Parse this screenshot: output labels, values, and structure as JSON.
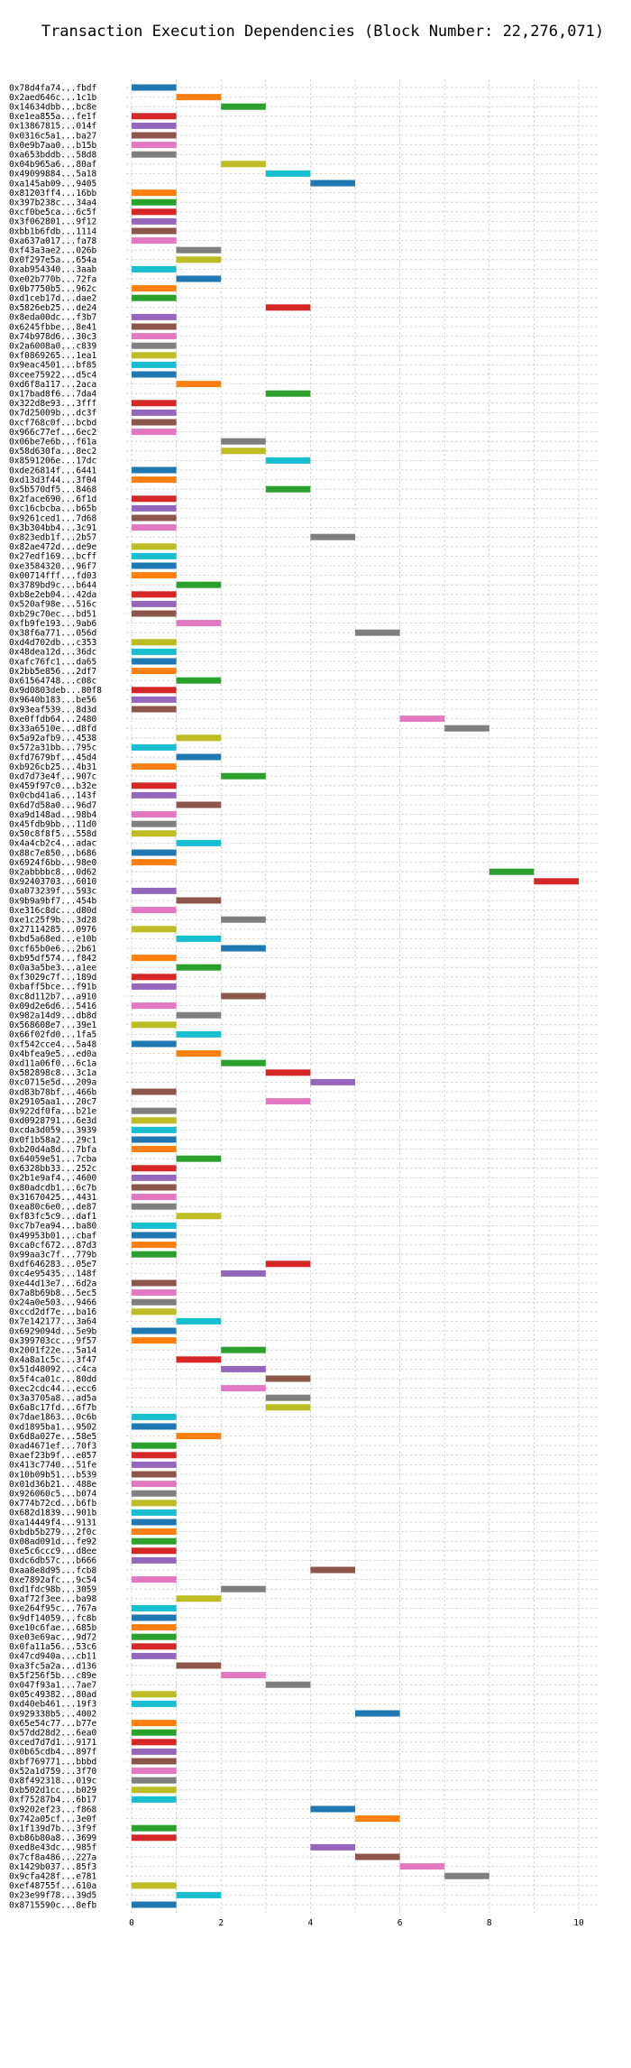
{
  "chart_data": {
    "type": "bar",
    "orientation": "horizontal-gantt",
    "title": "Transaction Execution Dependencies (Block Number: 22,276,071)",
    "xlabel": "",
    "ylabel": "",
    "xlim": [
      -0.3,
      10.5
    ],
    "xticks": [
      0,
      2,
      4,
      6,
      8,
      10
    ],
    "grid": true,
    "legend": "none",
    "colors": {
      "blue": "#1f77b4",
      "orange": "#ff7f0e",
      "green": "#2ca02c",
      "red": "#d62728",
      "purple": "#9467bd",
      "brown": "#8c564b",
      "pink": "#e377c2",
      "gray": "#7f7f7f",
      "olive": "#bcbd22",
      "cyan": "#17becf"
    },
    "categories": [
      "0x78d4fa74...fbdf",
      "0x2aed646c...1c1b",
      "0x14634dbb...bc8e",
      "0xe1ea855a...fe1f",
      "0x13867815...014f",
      "0x0316c5a1...ba27",
      "0x0e9b7aa0...b15b",
      "0xa653bddb...58d8",
      "0x04b965a6...80af",
      "0x49099884...5a18",
      "0xa145ab09...9405",
      "0x81203ff4...16bb",
      "0x397b238c...34a4",
      "0xcf0be5ca...6c5f",
      "0x3f062801...9f12",
      "0xbb1b6fdb...1114",
      "0xa637a017...fa78",
      "0xf43a3ae2...026b",
      "0x0f297e5a...654a",
      "0xab954340...3aab",
      "0xe02b770b...72fa",
      "0x0b7750b5...962c",
      "0xd1ceb17d...dae2",
      "0x5826eb25...de24",
      "0x8eda00dc...f3b7",
      "0x6245fbbe...8e41",
      "0x74b978d6...30c3",
      "0x2a6008a0...c839",
      "0xf0869265...1ea1",
      "0x9eac4501...bf85",
      "0xcee75922...d5c4",
      "0xd6f8a117...2aca",
      "0x17bad8f6...7da4",
      "0x322d8e93...3fff",
      "0x7d25009b...dc3f",
      "0xcf768c0f...bcbd",
      "0x966c77ef...6ec2",
      "0x06be7e6b...f61a",
      "0x58d630fa...8ec2",
      "0x8591206e...17dc",
      "0xde26814f...6441",
      "0xd13d3f44...3f04",
      "0x5b570df5...8468",
      "0x2face690...6f1d",
      "0xc16cbcba...b65b",
      "0x9261ced1...7d68",
      "0x3b304bb4...3c91",
      "0x823edb1f...2b57",
      "0x82ae472d...de9e",
      "0x27edf169...bcff",
      "0xe3584320...96f7",
      "0x00714fff...fd03",
      "0x3789bd9c...b644",
      "0xb8e2eb04...42da",
      "0x520af98e...516c",
      "0xb29c70ec...bd51",
      "0xfb9fe193...9ab6",
      "0x38f6a771...056d",
      "0xd4d702db...c353",
      "0x48dea12d...36dc",
      "0xafc76fc1...da65",
      "0x2bb5e856...2df7",
      "0x61564748...c08c",
      "0x9d0803deb...80f8",
      "0x9640b183...be56",
      "0x93eaf539...8d3d",
      "0xe0ffdb64...2480",
      "0x33a6510e...d8fd",
      "0x5a92afb9...4538",
      "0x572a31bb...795c",
      "0xfd7679bf...45d4",
      "0xb926cb25...4b31",
      "0xd7d73e4f...907c",
      "0x459f97c0...b32e",
      "0x0cbd41a6...143f",
      "0x6d7d58a0...96d7",
      "0xa9d148ad...98b4",
      "0x45fdb9bb...11d0",
      "0x50c8f8f5...558d",
      "0x4a4cb2c4...adac",
      "0x88c7e850...b686",
      "0x6924f6bb...98e0",
      "0x2abbbbc8...0d62",
      "0x92403703...6010",
      "0xa073239f...593c",
      "0x9b9a9bf7...454b",
      "0xe316c8dc...d80d",
      "0xe1c25f9b...3d28",
      "0x27114285...0976",
      "0xbd5a68ed...e10b",
      "0xcf65b0e6...2b61",
      "0xb95df574...f842",
      "0x0a3a5be3...a1ee",
      "0xf3029c7f...189d",
      "0xbaff5bce...f91b",
      "0xc8d112b7...a910",
      "0x09d2e6d6...5416",
      "0x982a14d9...db8d",
      "0x568608e7...39e1",
      "0x66f02fd0...1fa5",
      "0xf542cce4...5a48",
      "0x4bfea9e5...ed0a",
      "0xd11a06f0...6c1a",
      "0x582898c8...3c1a",
      "0xc0715e5d...209a",
      "0xd83b78bf...466b",
      "0x29105aa1...20c7",
      "0x922df0fa...b21e",
      "0xd0928791...6e3d",
      "0xcda3d059...3939",
      "0x0f1b58a2...29c1",
      "0xb20d4a8d...7bfa",
      "0x64059e51...7cba",
      "0x6328bb33...252c",
      "0x2b1e9af4...4600",
      "0x80adcdb1...6c7b",
      "0x31670425...4431",
      "0xea80c6e0...de87",
      "0xf83fc5c9...daf1",
      "0xc7b7ea94...ba80",
      "0x49953b01...cbaf",
      "0xca0cf672...87d3",
      "0x99aa3c7f...779b",
      "0xdf646283...05e7",
      "0xc4e95435...148f",
      "0xe44d13e7...6d2a",
      "0x7a8b69b8...5ec5",
      "0x24a0e503...9466",
      "0xccd2df7e...ba16",
      "0x7e142177...3a64",
      "0x6929094d...5e9b",
      "0x399703cc...9f57",
      "0x2001f22e...5a14",
      "0x4a8a1c5c...3f47",
      "0x51d48092...c4ca",
      "0x5f4ca01c...80dd",
      "0xec2cdc44...ecc6",
      "0x3a3705a8...ad5a",
      "0x6a8c17fd...6f7b",
      "0x7dae1863...0c6b",
      "0xd1895ba1...9502",
      "0x6d8a027e...58e5",
      "0xad4671ef...70f3",
      "0xaef23b9f...e057",
      "0x413c7740...51fe",
      "0x10b09b51...b539",
      "0x01d36b21...488e",
      "0x926060c5...b074",
      "0x774b72cd...b6fb",
      "0x682d1839...901b",
      "0xa14449f4...9131",
      "0xbdb5b279...2f0c",
      "0x08ad091d...fe92",
      "0xe5c6ccc9...d8ee",
      "0xdc6db57c...b666",
      "0xaa8e8d95...fcb8",
      "0xe7892afc...9c54",
      "0xd1fdc98b...3059",
      "0xaf72f3ee...ba98",
      "0xe264f95c...767a",
      "0x9df14059...fc8b",
      "0xe10c6fae...685b",
      "0xe03e69ac...9d72",
      "0x0fa11a56...53c6",
      "0x47cd940a...cb11",
      "0xa3fc5a2a...d136",
      "0x5f256f5b...c89e",
      "0x047f93a1...7ae7",
      "0x05c49382...80ad",
      "0xd40eb461...19f3",
      "0x929338b5...4002",
      "0x65e54c77...b77e",
      "0x57dd28d2...6ea0",
      "0xced7d7d1...9171",
      "0x0b65cdb4...897f",
      "0xbf769771...bbbd",
      "0x52a1d759...3f70",
      "0x8f492318...019c",
      "0xb502d1cc...b029",
      "0xf75287b4...6b17",
      "0x9202ef23...f868",
      "0x742a05cf...3e0f",
      "0x1f139d7b...3f9f",
      "0xb86b80a8...3699",
      "0xed8e43dc...985f",
      "0x7cf8a486...227a",
      "0x1429b037...85f3",
      "0x9cfa428f...e781",
      "0xef48755f...610a",
      "0x23e99f78...39d5",
      "0x8715590c...8efb"
    ],
    "start": [
      0,
      1,
      2,
      0,
      0,
      0,
      0,
      0,
      2,
      3,
      4,
      0,
      0,
      0,
      0,
      0,
      0,
      1,
      1,
      0,
      1,
      0,
      0,
      3,
      0,
      0,
      0,
      0,
      0,
      0,
      0,
      1,
      3,
      0,
      0,
      0,
      0,
      2,
      2,
      3,
      0,
      0,
      3,
      0,
      0,
      0,
      0,
      4,
      0,
      0,
      0,
      0,
      1,
      0,
      0,
      0,
      1,
      5,
      0,
      0,
      0,
      0,
      1,
      0,
      0,
      0,
      6,
      7,
      1,
      0,
      1,
      0,
      2,
      0,
      0,
      1,
      0,
      0,
      0,
      1,
      0,
      0,
      8,
      9,
      0,
      1,
      0,
      2,
      0,
      1,
      2,
      0,
      1,
      0,
      0,
      2,
      0,
      1,
      0,
      1,
      0,
      1,
      2,
      3,
      4,
      0,
      3,
      0,
      0,
      0,
      0,
      0,
      1,
      0,
      0,
      0,
      0,
      0,
      1,
      0,
      0,
      0,
      0,
      3,
      2,
      0,
      0,
      0,
      0,
      1,
      0,
      0,
      2,
      1,
      2,
      3,
      2,
      3,
      3,
      0,
      0,
      1,
      0,
      0,
      0,
      0,
      0,
      0,
      0,
      0,
      0,
      0,
      0,
      0,
      0,
      4,
      0,
      2,
      1,
      0,
      0,
      0,
      0,
      0,
      0,
      1,
      2,
      3,
      0,
      0,
      5,
      0,
      0,
      0,
      0,
      0,
      0,
      0,
      0,
      0,
      4,
      5,
      0,
      0,
      4,
      5,
      6,
      7,
      0,
      1,
      0
    ],
    "durations": "1 each",
    "bar_colors": [
      "#1f77b4",
      "#ff7f0e",
      "#2ca02c",
      "#d62728",
      "#9467bd",
      "#8c564b",
      "#e377c2",
      "#7f7f7f",
      "#bcbd22",
      "#17becf",
      "#1f77b4",
      "#ff7f0e",
      "#2ca02c",
      "#d62728",
      "#9467bd",
      "#8c564b",
      "#e377c2",
      "#7f7f7f",
      "#bcbd22",
      "#17becf",
      "#1f77b4",
      "#ff7f0e",
      "#2ca02c",
      "#d62728",
      "#9467bd",
      "#8c564b",
      "#e377c2",
      "#7f7f7f",
      "#bcbd22",
      "#17becf",
      "#1f77b4",
      "#ff7f0e",
      "#2ca02c",
      "#d62728",
      "#9467bd",
      "#8c564b",
      "#e377c2",
      "#7f7f7f",
      "#bcbd22",
      "#17becf",
      "#1f77b4",
      "#ff7f0e",
      "#2ca02c",
      "#d62728",
      "#9467bd",
      "#8c564b",
      "#e377c2",
      "#7f7f7f",
      "#bcbd22",
      "#17becf",
      "#1f77b4",
      "#ff7f0e",
      "#2ca02c",
      "#d62728",
      "#9467bd",
      "#8c564b",
      "#e377c2",
      "#7f7f7f",
      "#bcbd22",
      "#17becf",
      "#1f77b4",
      "#ff7f0e",
      "#2ca02c",
      "#d62728",
      "#9467bd",
      "#8c564b",
      "#e377c2",
      "#7f7f7f",
      "#bcbd22",
      "#17becf",
      "#1f77b4",
      "#ff7f0e",
      "#2ca02c",
      "#d62728",
      "#9467bd",
      "#8c564b",
      "#e377c2",
      "#7f7f7f",
      "#bcbd22",
      "#17becf",
      "#1f77b4",
      "#ff7f0e",
      "#2ca02c",
      "#d62728",
      "#9467bd",
      "#8c564b",
      "#e377c2",
      "#7f7f7f",
      "#bcbd22",
      "#17becf",
      "#1f77b4",
      "#ff7f0e",
      "#2ca02c",
      "#d62728",
      "#9467bd",
      "#8c564b",
      "#e377c2",
      "#7f7f7f",
      "#bcbd22",
      "#17becf",
      "#1f77b4",
      "#ff7f0e",
      "#2ca02c",
      "#d62728",
      "#9467bd",
      "#8c564b",
      "#e377c2",
      "#7f7f7f",
      "#bcbd22",
      "#17becf",
      "#1f77b4",
      "#ff7f0e",
      "#2ca02c",
      "#d62728",
      "#9467bd",
      "#8c564b",
      "#e377c2",
      "#7f7f7f",
      "#bcbd22",
      "#17becf",
      "#1f77b4",
      "#ff7f0e",
      "#2ca02c",
      "#d62728",
      "#9467bd",
      "#8c564b",
      "#e377c2",
      "#7f7f7f",
      "#bcbd22",
      "#17becf",
      "#1f77b4",
      "#ff7f0e",
      "#2ca02c",
      "#d62728",
      "#9467bd",
      "#8c564b",
      "#e377c2",
      "#7f7f7f",
      "#bcbd22",
      "#17becf",
      "#1f77b4",
      "#ff7f0e",
      "#2ca02c",
      "#d62728",
      "#9467bd",
      "#8c564b",
      "#e377c2",
      "#7f7f7f",
      "#bcbd22",
      "#17becf",
      "#1f77b4",
      "#ff7f0e",
      "#2ca02c",
      "#d62728",
      "#9467bd",
      "#8c564b",
      "#e377c2",
      "#7f7f7f",
      "#bcbd22",
      "#17becf",
      "#1f77b4",
      "#ff7f0e",
      "#2ca02c",
      "#d62728",
      "#9467bd",
      "#8c564b",
      "#e377c2",
      "#7f7f7f",
      "#bcbd22",
      "#17becf",
      "#1f77b4",
      "#ff7f0e",
      "#2ca02c",
      "#d62728",
      "#9467bd",
      "#8c564b",
      "#e377c2",
      "#7f7f7f",
      "#bcbd22",
      "#17becf",
      "#1f77b4",
      "#ff7f0e",
      "#2ca02c",
      "#d62728",
      "#9467bd",
      "#8c564b",
      "#e377c2",
      "#7f7f7f",
      "#bcbd22",
      "#17becf",
      "#1f77b4",
      "#ff7f0e",
      "#2ca02c",
      "#d62728",
      "#9467bd",
      "#8c564b",
      "#e377c2",
      "#7f7f7f",
      "#bcbd22",
      "#17becf",
      "#1f77b4"
    ]
  }
}
